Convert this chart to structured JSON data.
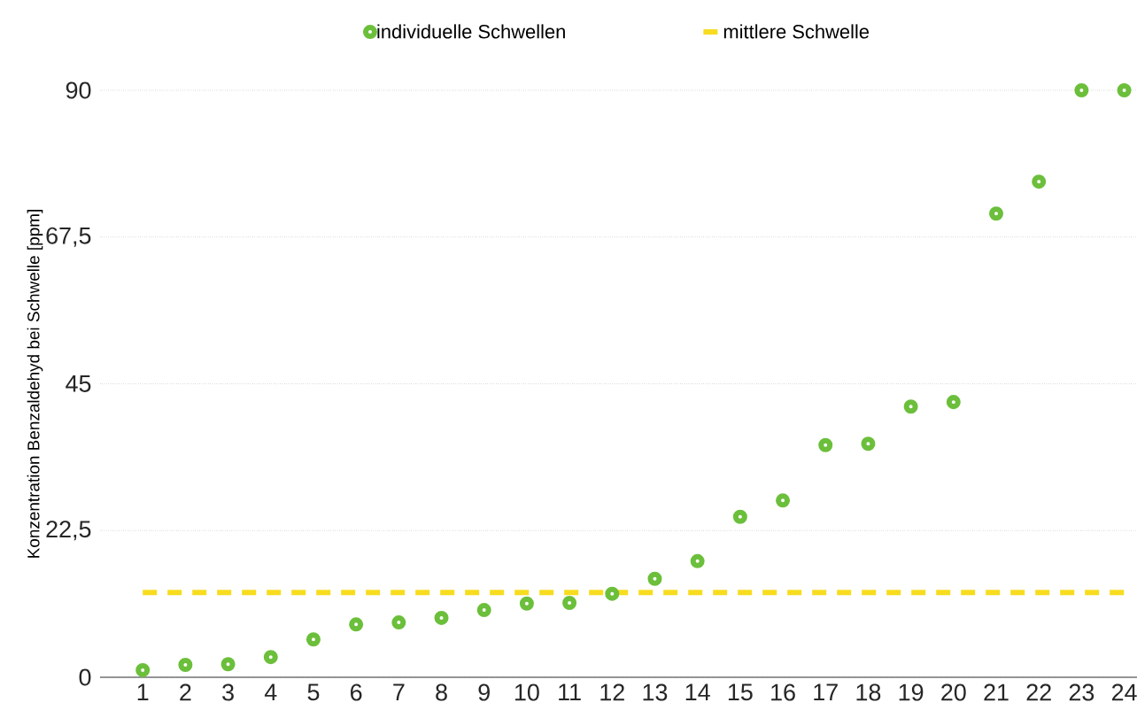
{
  "chart_data": {
    "type": "scatter",
    "ylabel": "Konzentration Benzaldehyd bei Schwelle [ppm]",
    "x": [
      1,
      2,
      3,
      4,
      5,
      6,
      7,
      8,
      9,
      10,
      11,
      12,
      13,
      14,
      15,
      16,
      17,
      18,
      19,
      20,
      21,
      22,
      23,
      24
    ],
    "series": [
      {
        "name": "individuelle Schwellen",
        "color": "#6bbf3b",
        "marker": "circle",
        "values": [
          1.1,
          1.9,
          2.0,
          3.1,
          5.8,
          8.1,
          8.4,
          9.1,
          10.3,
          11.3,
          11.4,
          12.8,
          15.1,
          17.8,
          24.6,
          27.1,
          35.6,
          35.8,
          41.5,
          42.2,
          71.1,
          76.0,
          90,
          90
        ]
      },
      {
        "name": "mittlere Schwelle",
        "type": "line",
        "color": "#f7dc1f",
        "line_style": "dashed",
        "marker": "none",
        "x": [
          1,
          24
        ],
        "values": [
          13.0,
          13.0
        ]
      }
    ],
    "xlim": [
      0,
      24.3
    ],
    "xticks": [
      1,
      2,
      3,
      4,
      5,
      6,
      7,
      8,
      9,
      10,
      11,
      12,
      13,
      14,
      15,
      16,
      17,
      18,
      19,
      20,
      21,
      22,
      23,
      24
    ],
    "ylim": [
      0,
      90
    ],
    "yticks": [
      0,
      {
        "value": 22.5,
        "label": "22,5"
      },
      45,
      {
        "value": 67.5,
        "label": "67,5"
      },
      90
    ],
    "grid": "y",
    "legend": "top"
  }
}
